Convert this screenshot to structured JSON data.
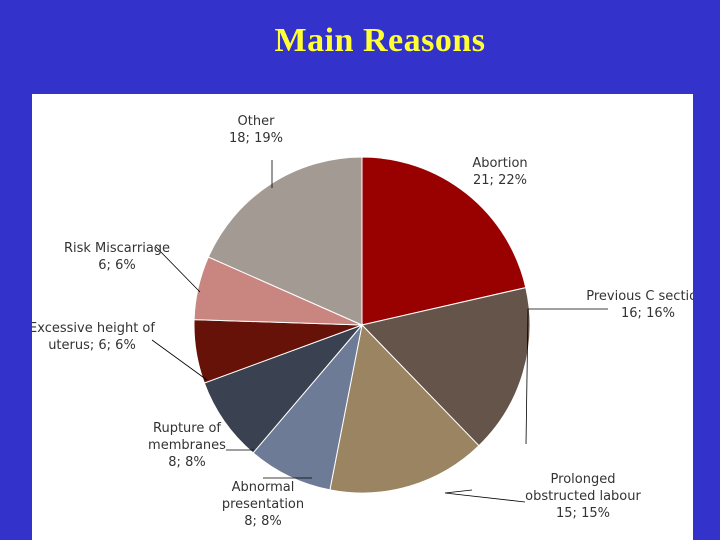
{
  "title": "Main Reasons",
  "chart_data": {
    "type": "pie",
    "title": "Main Reasons",
    "start_angle_deg": 0,
    "direction": "clockwise",
    "slices": [
      {
        "name": "Abortion",
        "value": 21,
        "percent": "22%",
        "color": "#990000",
        "label_lines": [
          "Abortion",
          "21; 22%"
        ]
      },
      {
        "name": "Previous C section",
        "value": 16,
        "percent": "16%",
        "color": "#65544a",
        "label_lines": [
          "Previous C section;",
          "16; 16%"
        ]
      },
      {
        "name": "Prolonged obstructed labour",
        "value": 15,
        "percent": "15%",
        "color": "#9a8462",
        "label_lines": [
          "Prolonged",
          "obstructed labour",
          "15; 15%"
        ]
      },
      {
        "name": "Abnormal presentation",
        "value": 8,
        "percent": "8%",
        "color": "#6d7b96",
        "label_lines": [
          "Abnormal",
          "presentation",
          "8; 8%"
        ]
      },
      {
        "name": "Rupture of membranes",
        "value": 8,
        "percent": "8%",
        "color": "#3a4150",
        "label_lines": [
          "Rupture of",
          "membranes",
          "8; 8%"
        ]
      },
      {
        "name": "Excessive height of uterus",
        "value": 6,
        "percent": "6%",
        "color": "#661208",
        "label_lines": [
          "Excessive height of",
          "uterus; 6; 6%"
        ]
      },
      {
        "name": "Risk Miscarriage",
        "value": 6,
        "percent": "6%",
        "color": "#c98680",
        "label_lines": [
          "Risk Miscarriage",
          "6; 6%"
        ]
      },
      {
        "name": "Other",
        "value": 18,
        "percent": "19%",
        "color": "#a49a94",
        "label_lines": [
          "Other",
          "18; 19%"
        ]
      }
    ]
  }
}
